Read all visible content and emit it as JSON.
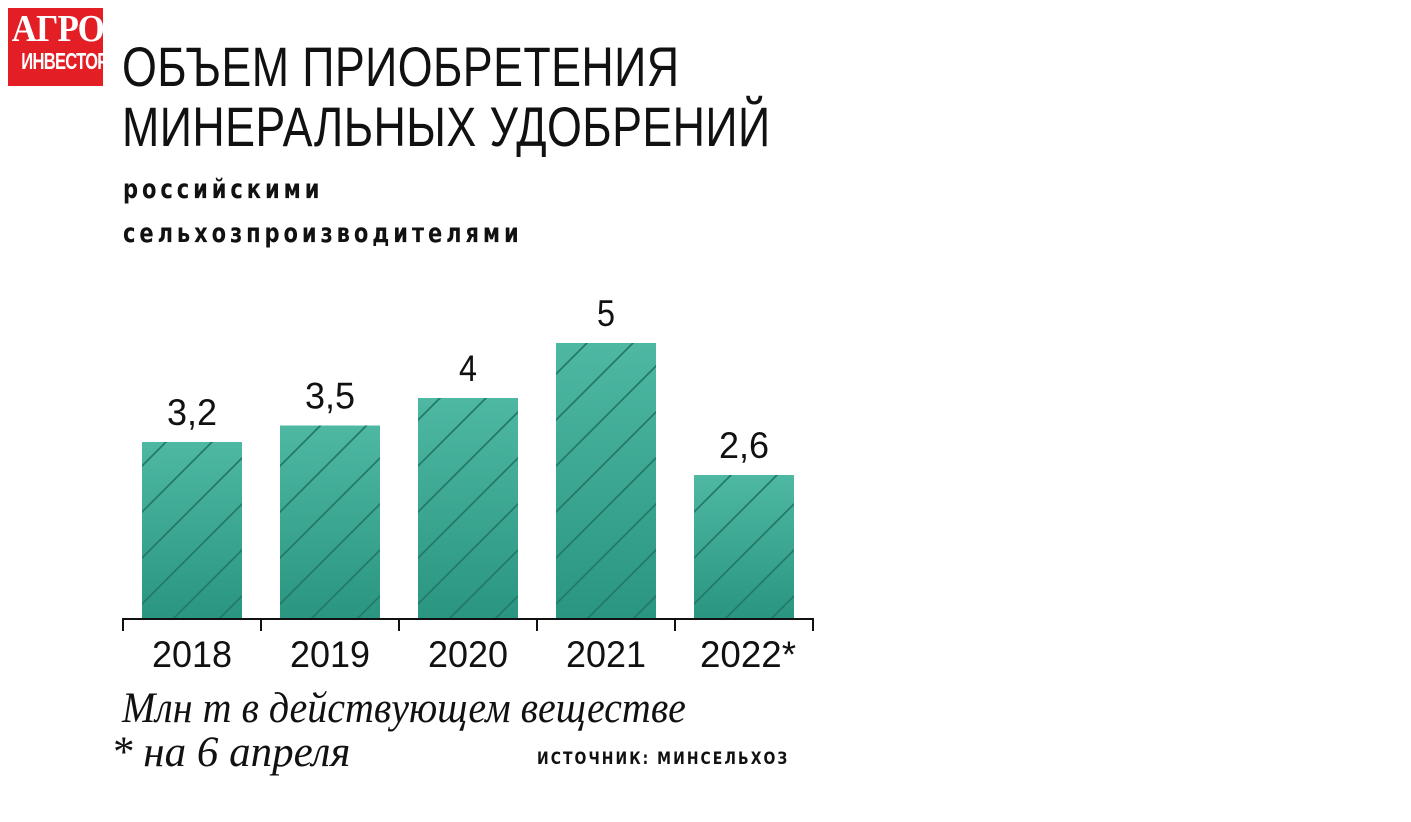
{
  "logo": {
    "line1": "АГРО",
    "line2": "ИНВЕСТОР",
    "color": "#e31e24"
  },
  "title": "ОБЪЕМ ПРИОБРЕТЕНИЯ МИНЕРАЛЬНЫХ УДОБРЕНИЙ",
  "subtitle": "российскими сельхозпроизводителями",
  "notes": {
    "unit": "Млн т в действующем веществе",
    "date": "* на 6 апреля",
    "source": "ИСТОЧНИК: МИНСЕЛЬХОЗ"
  },
  "chart_data": {
    "type": "bar",
    "categories": [
      "2018",
      "2019",
      "2020",
      "2021",
      "2022*"
    ],
    "values": [
      3.2,
      3.5,
      4,
      5,
      2.6
    ],
    "value_labels": [
      "3,2",
      "3,5",
      "4",
      "5",
      "2,6"
    ],
    "title": "ОБЪЕМ ПРИОБРЕТЕНИЯ МИНЕРАЛЬНЫХ УДОБРЕНИЙ",
    "subtitle": "российскими сельхозпроизводителями",
    "ylabel": "Млн т в действующем веществе",
    "ylim": [
      0,
      5
    ],
    "grid": false,
    "legend": "none",
    "bar_color_top": "#4eb8a3",
    "bar_color_bottom": "#2a9580",
    "hatch_color": "#237a69"
  }
}
